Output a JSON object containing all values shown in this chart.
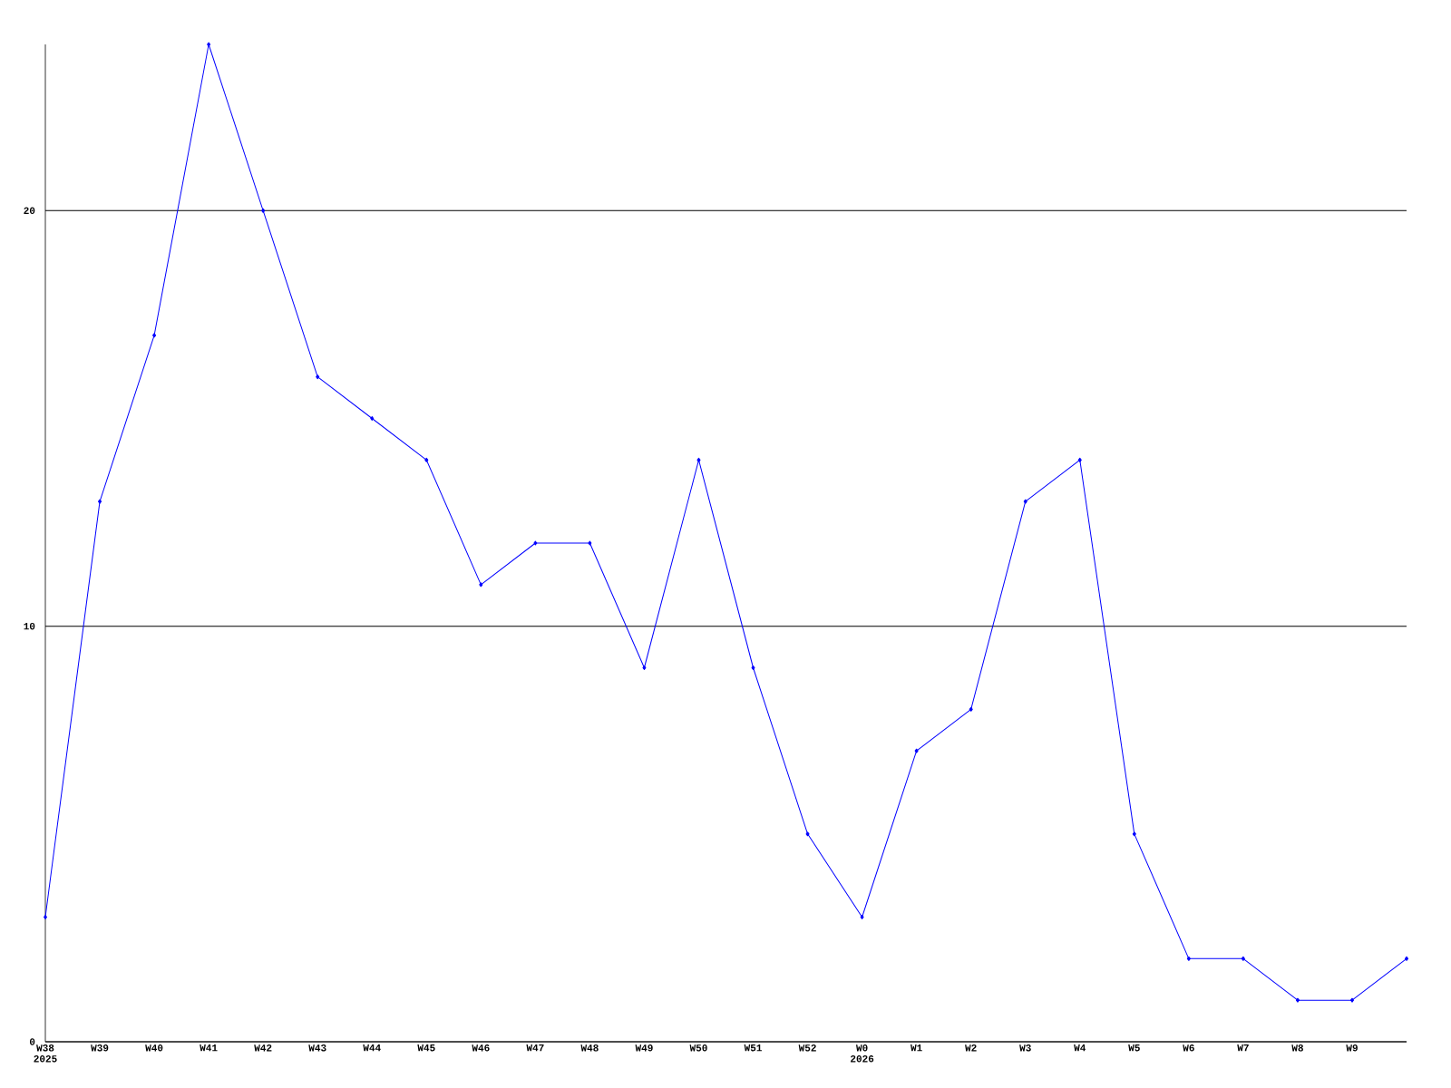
{
  "chart_data": {
    "type": "line",
    "categories": [
      "W38 2025",
      "W39",
      "W40",
      "W41",
      "W42",
      "W43",
      "W44",
      "W45",
      "W46",
      "W47",
      "W48",
      "W49",
      "W50",
      "W51",
      "W52",
      "W0 2026",
      "W1",
      "W2",
      "W3",
      "W4",
      "W5",
      "W6",
      "W7",
      "W8",
      "W9",
      null
    ],
    "values": [
      3,
      13,
      17,
      24,
      20,
      16,
      15,
      14,
      11,
      12,
      12,
      9,
      14,
      9,
      5,
      3,
      7,
      8,
      13,
      14,
      5,
      2,
      2,
      1,
      1,
      2
    ],
    "color": "#0000ff",
    "marker": "diamond",
    "ylim": [
      0,
      24
    ],
    "yticks": [
      0,
      10,
      20
    ],
    "grid": "y"
  }
}
